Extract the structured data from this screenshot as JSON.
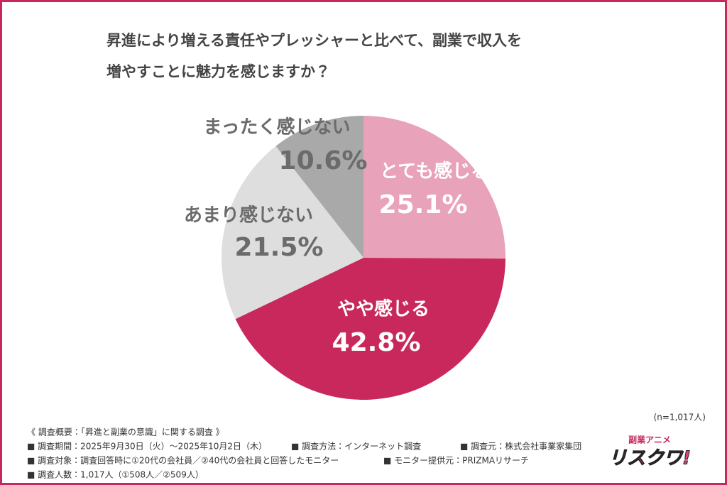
{
  "chart_data": {
    "type": "pie",
    "title": [
      "昇進により増える責任やプレッシャーと比べて、副業で収入を",
      "増やすことに魅力を感じますか？"
    ],
    "categories": [
      "とても感じる",
      "やや感じる",
      "あまり感じない",
      "まったく感じない"
    ],
    "values": [
      25.1,
      42.8,
      21.5,
      10.6
    ],
    "value_labels": [
      "25.1%",
      "42.8%",
      "21.5%",
      "10.6%"
    ],
    "colors": [
      "#e8a2b9",
      "#c8285c",
      "#dedede",
      "#a9a9a9"
    ],
    "label_colors": [
      "#ffffff",
      "#ffffff",
      "#6b6b6b",
      "#6b6b6b"
    ],
    "sample_size": "(n=1,017人)",
    "survey": {
      "heading": "《 調査概要：「昇進と副業の意識」に関する調査 》",
      "rows": [
        [
          "■ 調査期間：2025年9月30日（火）〜2025年10月2日（木）",
          "■ 調査方法：インターネット調査",
          "■ 調査元：株式会社事業家集団"
        ],
        [
          "■ 調査対象：調査回答時に①20代の会社員／②40代の会社員と回答したモニター",
          "■ モニター提供元：PRIZMAリサーチ"
        ],
        [
          "■ 調査人数：1,017人（①508人／②509人）"
        ]
      ]
    },
    "logo": {
      "top": "副業アニメ",
      "main": "リスクワ!"
    }
  }
}
